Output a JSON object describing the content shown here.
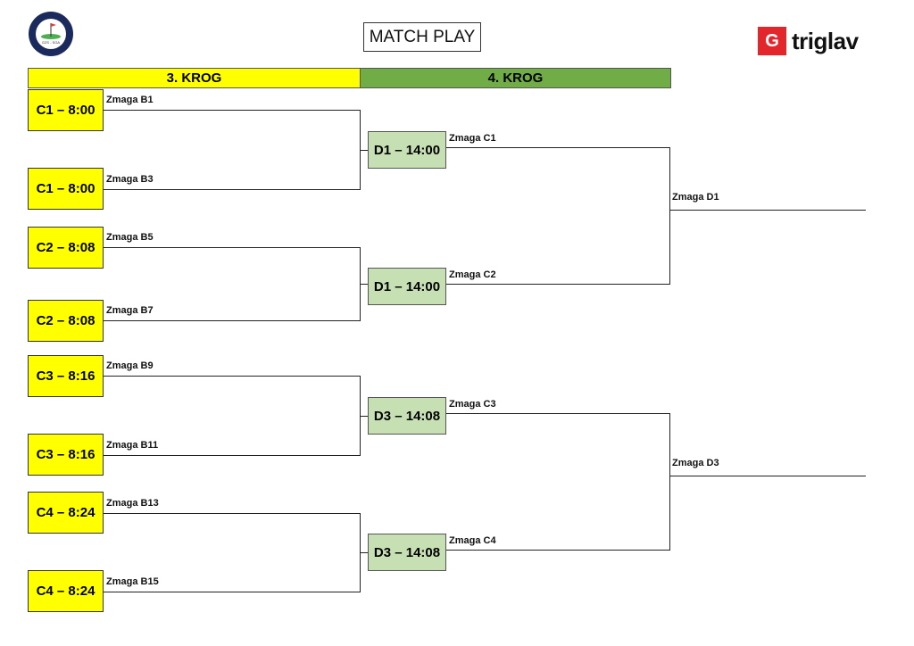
{
  "title": "MATCH PLAY",
  "logo_left": {
    "text": [
      "SLOVENIAN GOLF ASSOCIATION",
      "GOLF ZVEZA SLOVENIJE",
      "GZS - SGA"
    ],
    "colors": {
      "ring": "#1b2a5c",
      "green": "#4caf50",
      "flag": "#e53935"
    }
  },
  "logo_right": {
    "text": "triglav",
    "color": "#e3262b"
  },
  "rounds": [
    {
      "label": "3. KROG",
      "color": "#ffff00"
    },
    {
      "label": "4. KROG",
      "color": "#70ad47"
    }
  ],
  "round3_matches": [
    {
      "label": "C1 – 8:00",
      "winner": "Zmaga B1"
    },
    {
      "label": "C1 – 8:00",
      "winner": "Zmaga B3"
    },
    {
      "label": "C2 – 8:08",
      "winner": "Zmaga B5"
    },
    {
      "label": "C2 – 8:08",
      "winner": "Zmaga B7"
    },
    {
      "label": "C3 – 8:16",
      "winner": "Zmaga B9"
    },
    {
      "label": "C3 – 8:16",
      "winner": "Zmaga B11"
    },
    {
      "label": "C4 – 8:24",
      "winner": "Zmaga B13"
    },
    {
      "label": "C4 – 8:24",
      "winner": "Zmaga B15"
    }
  ],
  "round4_matches": [
    {
      "label": "D1 – 14:00",
      "winner": "Zmaga C1"
    },
    {
      "label": "D1 – 14:00",
      "winner": "Zmaga  C2"
    },
    {
      "label": "D3 – 14:08",
      "winner": "Zmaga C3"
    },
    {
      "label": "D3 – 14:08",
      "winner": "Zmaga C4"
    }
  ],
  "finals": [
    {
      "winner": "Zmaga D1"
    },
    {
      "winner": "Zmaga D3"
    }
  ]
}
